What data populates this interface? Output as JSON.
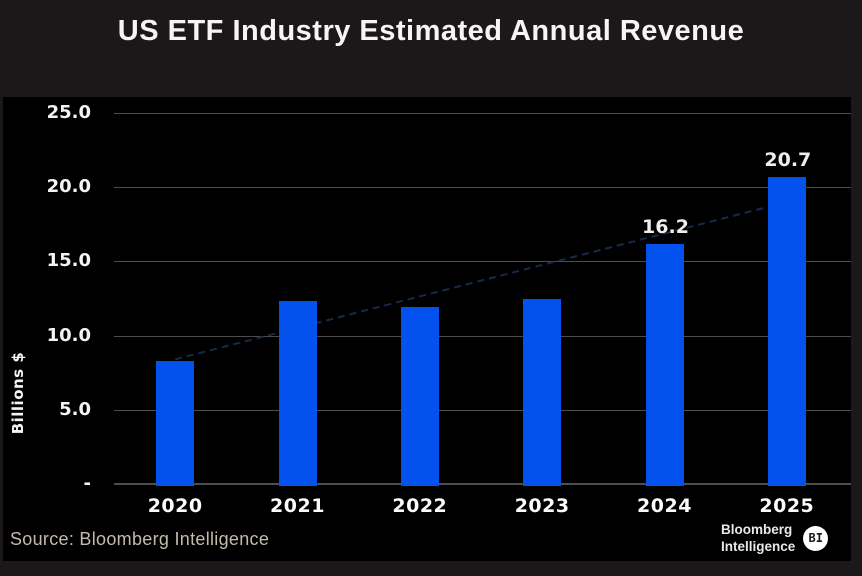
{
  "chart_data": {
    "type": "bar",
    "title": "US ETF Industry Estimated Annual Revenue",
    "categories": [
      "2020",
      "2021",
      "2022",
      "2023",
      "2024",
      "2025"
    ],
    "values": [
      8.3,
      12.3,
      11.9,
      12.5,
      16.2,
      20.7
    ],
    "data_labels": [
      "",
      "",
      "",
      "",
      "16.2",
      "20.7"
    ],
    "ylabel": "Billions $",
    "xlabel": "",
    "ylim": [
      0,
      25
    ],
    "yticks": [
      {
        "value": 25,
        "label": "25.0"
      },
      {
        "value": 20,
        "label": "20.0"
      },
      {
        "value": 15,
        "label": "15.0"
      },
      {
        "value": 10,
        "label": "10.0"
      },
      {
        "value": 5,
        "label": "5.0"
      },
      {
        "value": 0,
        "label": "-"
      }
    ],
    "grid": "horizontal",
    "legend": "none",
    "bar_color": "#0452ee",
    "trendline": {
      "type": "linear",
      "dashed": true,
      "color": "#152a4a",
      "start_value": 8.4,
      "end_value": 19.0
    }
  },
  "footer": {
    "source": "Source: Bloomberg Intelligence",
    "logo": {
      "line1": "Bloomberg",
      "line2": "Intelligence",
      "badge": "BI"
    }
  },
  "colors": {
    "background": "#1c1819",
    "panel": "#000000",
    "bar": "#0452ee",
    "gridline": "#4d4d4d",
    "title_text": "#f7f4f4",
    "axis_text": "#f5f3f3",
    "source_text": "#c3bbab",
    "trendline": "#152a4a",
    "badge_bg": "#ffffff"
  }
}
